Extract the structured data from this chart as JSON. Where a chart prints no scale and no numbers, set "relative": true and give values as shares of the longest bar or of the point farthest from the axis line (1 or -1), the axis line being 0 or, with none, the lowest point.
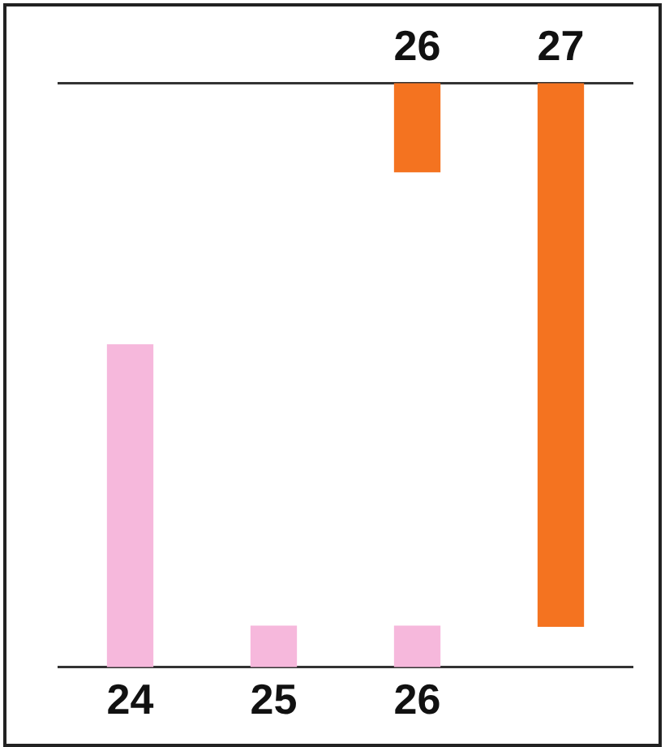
{
  "chart_data": [
    {
      "type": "bar",
      "relative": true,
      "categories": [
        null,
        null,
        "26",
        "27"
      ],
      "series": [
        {
          "color": "#f47320",
          "values": [
            null,
            null,
            -0.163,
            -1
          ]
        }
      ],
      "grid": false,
      "legend": false
    },
    {
      "type": "bar",
      "relative": true,
      "categories": [
        "24",
        "25",
        "26",
        null
      ],
      "series": [
        {
          "color": "#f6b8dc",
          "values": [
            1,
            0.127,
            0.127,
            null
          ]
        }
      ],
      "grid": false,
      "legend": false
    }
  ]
}
